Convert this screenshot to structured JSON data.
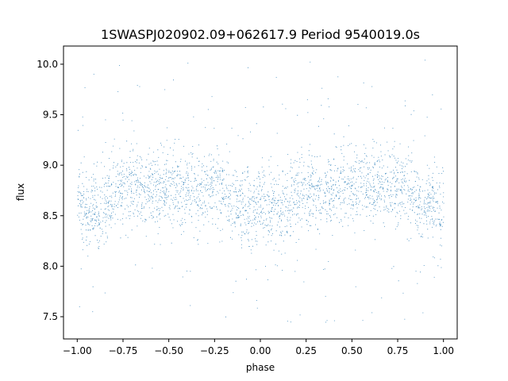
{
  "chart_data": {
    "type": "scatter",
    "title": "1SWASPJ020902.09+062617.9 Period 9540019.0s",
    "xlabel": "phase",
    "ylabel": "flux",
    "xlim": [
      -1.075,
      1.075
    ],
    "ylim": [
      7.28,
      10.18
    ],
    "xticks": [
      -1.0,
      -0.75,
      -0.5,
      -0.25,
      0.0,
      0.25,
      0.5,
      0.75,
      1.0
    ],
    "xtick_labels": [
      "−1.00",
      "−0.75",
      "−0.50",
      "−0.25",
      "0.00",
      "0.25",
      "0.50",
      "0.75",
      "1.00"
    ],
    "yticks": [
      7.5,
      8.0,
      8.5,
      9.0,
      9.5,
      10.0
    ],
    "ytick_labels": [
      "7.5",
      "8.0",
      "8.5",
      "9.0",
      "9.5",
      "10.0"
    ],
    "grid": false,
    "marker_color": "#1f77b4",
    "profile": {
      "x": [
        -1.0,
        -0.9,
        -0.75,
        -0.6,
        -0.5,
        -0.4,
        -0.25,
        -0.1,
        0.0,
        0.1,
        0.25,
        0.4,
        0.5,
        0.6,
        0.75,
        0.9,
        1.0
      ],
      "y": [
        8.58,
        8.55,
        8.8,
        8.78,
        8.78,
        8.76,
        8.79,
        8.62,
        8.56,
        8.57,
        8.78,
        8.78,
        8.78,
        8.77,
        8.8,
        8.6,
        8.58
      ]
    },
    "core_scatter_sigma": 0.18,
    "outlier_range": [
      7.42,
      10.05
    ],
    "point_count": 14000
  }
}
